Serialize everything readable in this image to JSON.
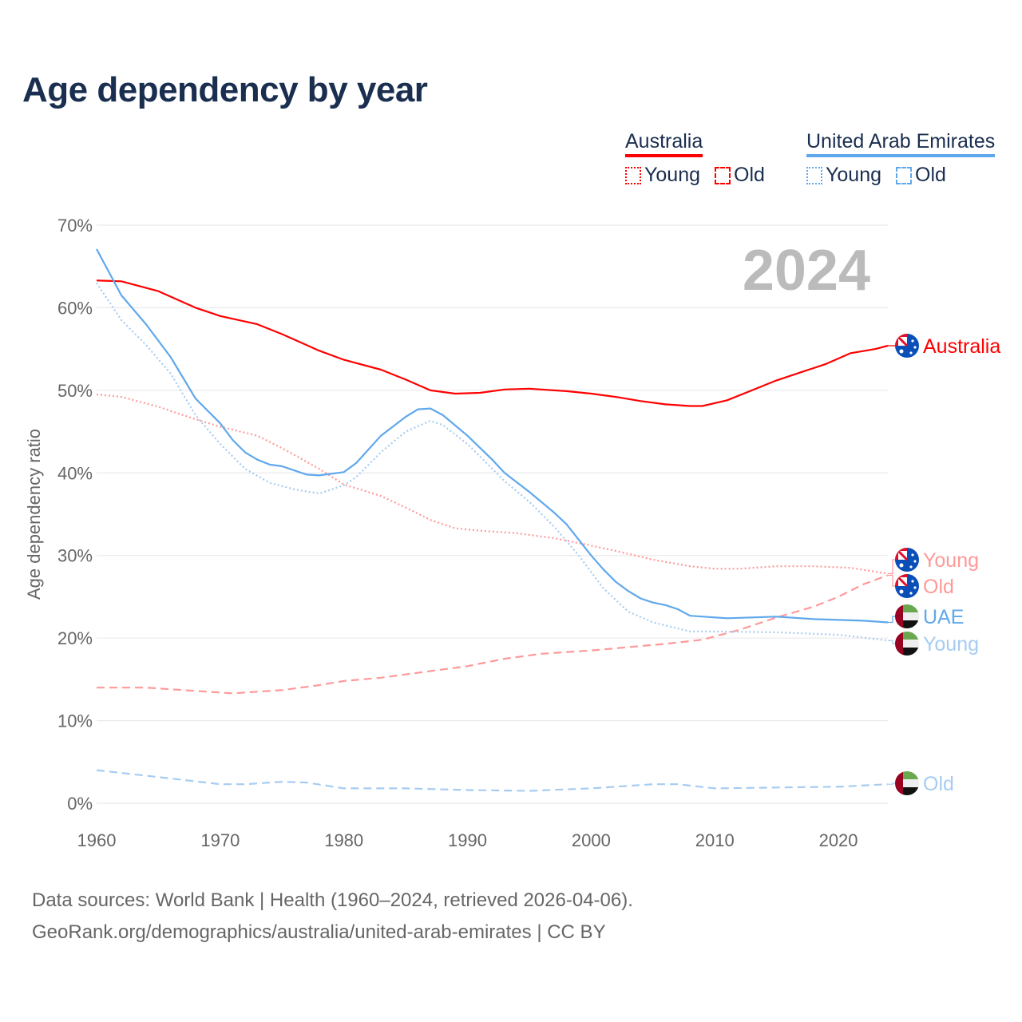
{
  "title": "Age dependency by year",
  "legend": {
    "groups": [
      {
        "name": "Australia",
        "color": "#ff0000",
        "items": [
          {
            "label": "Young",
            "style": "dotted"
          },
          {
            "label": "Old",
            "style": "dashed"
          }
        ]
      },
      {
        "name": "United Arab Emirates",
        "color": "#5fa8ec",
        "items": [
          {
            "label": "Young",
            "style": "dotted"
          },
          {
            "label": "Old",
            "style": "dashed"
          }
        ]
      }
    ]
  },
  "footer": {
    "line1": "Data sources: World Bank | Health (1960–2024, retrieved 2026-04-06).",
    "line2": "GeoRank.org/demographics/australia/united-arab-emirates | CC BY"
  },
  "chart_data": {
    "type": "line",
    "title": "Age dependency by year",
    "year_watermark": "2024",
    "xlabel": "",
    "ylabel": "Age dependency ratio",
    "xlim": [
      1960,
      2024
    ],
    "ylim": [
      0,
      70
    ],
    "x_ticks": [
      "1960",
      "1970",
      "1980",
      "1990",
      "2000",
      "2010",
      "2020"
    ],
    "y_ticks": [
      "0%",
      "10%",
      "20%",
      "30%",
      "40%",
      "50%",
      "60%",
      "70%"
    ],
    "grid": true,
    "series": [
      {
        "name": "Australia",
        "end_label": "Australia",
        "color": "#ff0000",
        "style": "solid",
        "flag": "australia",
        "x": [
          1960,
          1962,
          1965,
          1968,
          1970,
          1973,
          1975,
          1978,
          1980,
          1983,
          1985,
          1987,
          1989,
          1991,
          1993,
          1995,
          1998,
          2000,
          2002,
          2004,
          2006,
          2008,
          2009,
          2011,
          2013,
          2015,
          2017,
          2019,
          2021,
          2023,
          2024
        ],
        "y": [
          63.3,
          63.2,
          62,
          60,
          59,
          58,
          56.8,
          54.8,
          53.7,
          52.5,
          51.3,
          50,
          49.6,
          49.7,
          50.1,
          50.2,
          49.9,
          49.6,
          49.2,
          48.7,
          48.3,
          48.1,
          48.1,
          48.8,
          50,
          51.2,
          52.2,
          53.2,
          54.5,
          55,
          55.4
        ]
      },
      {
        "name": "Australia Young",
        "end_label": "Young",
        "color": "#ff9999",
        "style": "dotted",
        "flag": "australia",
        "x": [
          1960,
          1962,
          1965,
          1968,
          1970,
          1973,
          1975,
          1978,
          1980,
          1983,
          1985,
          1987,
          1989,
          1991,
          1994,
          1997,
          2000,
          2003,
          2005,
          2008,
          2010,
          2012,
          2015,
          2018,
          2021,
          2024
        ],
        "y": [
          49.5,
          49.2,
          48,
          46.5,
          45.6,
          44.5,
          43,
          40.5,
          38.6,
          37.2,
          35.8,
          34.3,
          33.3,
          33,
          32.7,
          32.1,
          31.2,
          30.2,
          29.5,
          28.7,
          28.4,
          28.4,
          28.7,
          28.7,
          28.5,
          27.8
        ]
      },
      {
        "name": "Australia Old",
        "end_label": "Old",
        "color": "#ff9999",
        "style": "dashed",
        "flag": "australia",
        "x": [
          1960,
          1964,
          1967,
          1971,
          1975,
          1978,
          1980,
          1983,
          1985,
          1987,
          1990,
          1993,
          1996,
          2000,
          2003,
          2006,
          2009,
          2012,
          2015,
          2018,
          2020,
          2022,
          2024
        ],
        "y": [
          14,
          14,
          13.7,
          13.3,
          13.7,
          14.3,
          14.8,
          15.2,
          15.6,
          16,
          16.6,
          17.5,
          18.1,
          18.5,
          18.9,
          19.3,
          19.8,
          21,
          22.5,
          23.8,
          25,
          26.5,
          27.6
        ]
      },
      {
        "name": "United Arab Emirates",
        "end_label": "UAE",
        "color": "#5fa8ec",
        "style": "solid",
        "flag": "uae",
        "x": [
          1960,
          1962,
          1964,
          1966,
          1968,
          1970,
          1971,
          1972,
          1973,
          1974,
          1975,
          1977,
          1978,
          1980,
          1981,
          1983,
          1985,
          1986,
          1987,
          1988,
          1990,
          1992,
          1993,
          1995,
          1997,
          1998,
          2000,
          2001,
          2002,
          2003,
          2004,
          2005,
          2006,
          2007,
          2008,
          2011,
          2013,
          2015,
          2018,
          2020,
          2022,
          2024
        ],
        "y": [
          67.1,
          61.5,
          58,
          54,
          49,
          46,
          44,
          42.5,
          41.6,
          41,
          40.8,
          39.8,
          39.7,
          40.1,
          41.2,
          44.5,
          46.8,
          47.7,
          47.8,
          47,
          44.5,
          41.6,
          40,
          37.7,
          35.2,
          33.8,
          30,
          28.3,
          26.8,
          25.7,
          24.8,
          24.3,
          24,
          23.5,
          22.7,
          22.4,
          22.5,
          22.6,
          22.3,
          22.2,
          22.1,
          21.9
        ]
      },
      {
        "name": "United Arab Emirates Young",
        "end_label": "Young",
        "color": "#a6ccf2",
        "style": "dotted",
        "flag": "uae",
        "x": [
          1960,
          1962,
          1964,
          1966,
          1968,
          1970,
          1972,
          1974,
          1976,
          1978,
          1980,
          1981,
          1983,
          1985,
          1987,
          1988,
          1990,
          1993,
          1995,
          1997,
          1999,
          2001,
          2003,
          2005,
          2008,
          2010,
          2015,
          2020,
          2024
        ],
        "y": [
          63,
          58.5,
          55.5,
          52,
          47,
          43.5,
          40.5,
          38.8,
          38,
          37.5,
          38.5,
          39.5,
          42.5,
          45,
          46.3,
          45.8,
          43.5,
          39,
          36.5,
          33.5,
          30,
          26,
          23.2,
          21.9,
          20.8,
          20.8,
          20.7,
          20.4,
          19.7
        ]
      },
      {
        "name": "United Arab Emirates Old",
        "end_label": "Old",
        "color": "#a6ccf2",
        "style": "dashed",
        "flag": "uae",
        "x": [
          1960,
          1963,
          1966,
          1970,
          1972,
          1975,
          1977,
          1980,
          1985,
          1990,
          1995,
          2000,
          2005,
          2007,
          2010,
          2015,
          2020,
          2024
        ],
        "y": [
          4,
          3.5,
          3,
          2.3,
          2.3,
          2.6,
          2.5,
          1.8,
          1.8,
          1.6,
          1.5,
          1.8,
          2.3,
          2.3,
          1.8,
          1.9,
          2,
          2.3
        ]
      }
    ]
  }
}
